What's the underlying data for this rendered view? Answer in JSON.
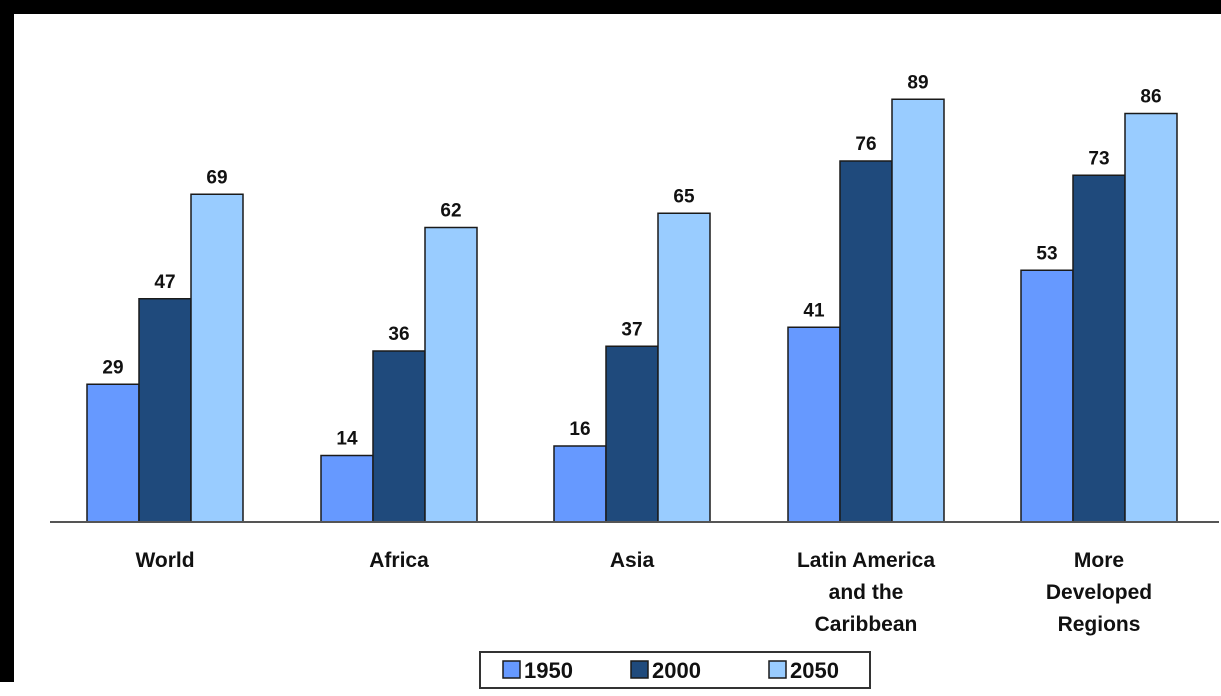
{
  "chart_data": {
    "type": "bar",
    "title": "",
    "xlabel": "",
    "ylabel": "",
    "ylim": [
      0,
      100
    ],
    "grid": false,
    "legend_position": "bottom",
    "categories": [
      "World",
      "Africa",
      "Asia",
      "Latin America and the Caribbean",
      "More Developed Regions"
    ],
    "category_label_lines": [
      [
        "World"
      ],
      [
        "Africa"
      ],
      [
        "Asia"
      ],
      [
        "Latin America",
        "and the",
        "Caribbean"
      ],
      [
        "More",
        "Developed",
        "Regions"
      ]
    ],
    "series": [
      {
        "name": "1950",
        "color": "#6699ff",
        "values": [
          29,
          14,
          16,
          41,
          53
        ]
      },
      {
        "name": "2000",
        "color": "#1f4a7c",
        "values": [
          47,
          36,
          37,
          76,
          73
        ]
      },
      {
        "name": "2050",
        "color": "#99ccff",
        "values": [
          69,
          62,
          65,
          89,
          86
        ]
      }
    ]
  }
}
